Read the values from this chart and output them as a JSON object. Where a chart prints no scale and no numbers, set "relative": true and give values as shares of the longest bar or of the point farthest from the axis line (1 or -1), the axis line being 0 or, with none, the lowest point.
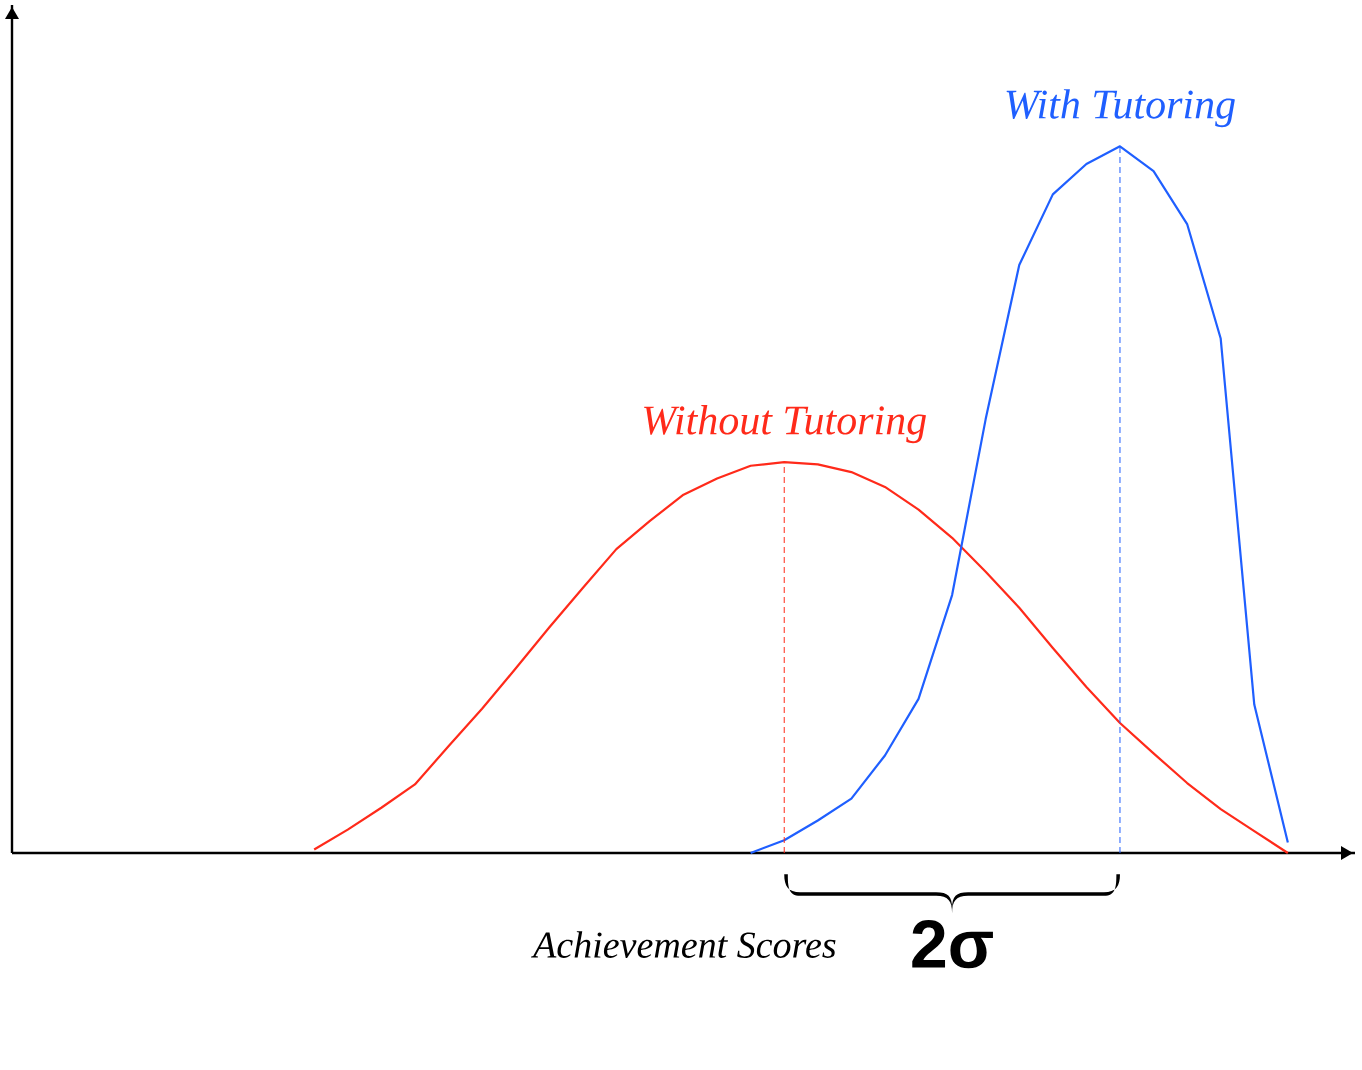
{
  "chart_data": {
    "type": "line",
    "relative": true,
    "xlabel": "Achievement Scores",
    "marker": "none",
    "line_style": "solid",
    "annotations": [
      "2σ"
    ],
    "categories": [
      null,
      null,
      null,
      null,
      null,
      null,
      null,
      null,
      null,
      null,
      null,
      null,
      null,
      null,
      null,
      null,
      null,
      null,
      null,
      null,
      null,
      null,
      null,
      null,
      null,
      null,
      null,
      null,
      null,
      null,
      null,
      null,
      null,
      null,
      null,
      null,
      null,
      null,
      null,
      null,
      null
    ],
    "series": [
      {
        "name": "Without Tutoring",
        "color": "#ff2a1a",
        "values": [
          null,
          null,
          null,
          null,
          null,
          null,
          null,
          null,
          null,
          0.005,
          0.033,
          0.064,
          0.097,
          0.151,
          0.204,
          0.261,
          0.319,
          0.375,
          0.43,
          0.47,
          0.507,
          0.53,
          0.548,
          0.553,
          0.55,
          0.539,
          0.518,
          0.486,
          0.446,
          0.398,
          0.347,
          0.29,
          0.235,
          0.184,
          0.141,
          0.099,
          0.062,
          0.031,
          0,
          null,
          null
        ]
      },
      {
        "name": "With Tutoring",
        "color": "#1f5fff",
        "values": [
          null,
          null,
          null,
          null,
          null,
          null,
          null,
          null,
          null,
          null,
          null,
          null,
          null,
          null,
          null,
          null,
          null,
          null,
          null,
          null,
          null,
          null,
          0,
          0.018,
          0.046,
          0.077,
          0.138,
          0.218,
          0.365,
          0.614,
          0.832,
          0.932,
          0.975,
          1,
          0.965,
          0.89,
          0.728,
          0.21,
          0.015,
          null,
          null
        ]
      }
    ]
  }
}
